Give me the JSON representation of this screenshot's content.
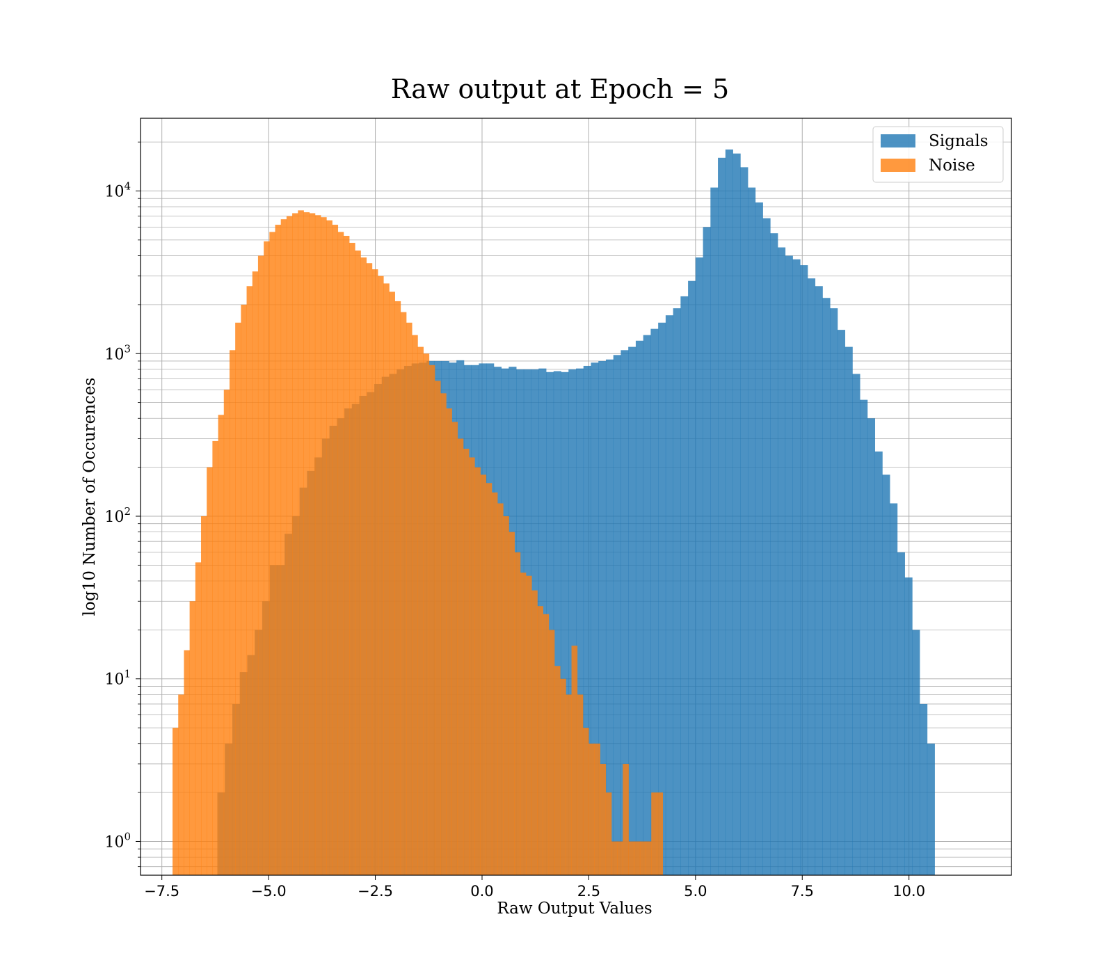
{
  "chart_data": {
    "type": "bar",
    "title": "Raw output at Epoch = 5",
    "xlabel": "Raw Output Values",
    "ylabel": "log10 Number of Occurences",
    "xlim": [
      -8.0,
      12.4
    ],
    "ylim": [
      0.62,
      28000
    ],
    "yscale": "log",
    "grid": true,
    "legend_position": "top-right",
    "x_ticks": [
      -7.5,
      -5.0,
      -2.5,
      0.0,
      2.5,
      5.0,
      7.5,
      10.0
    ],
    "x_tick_labels": [
      "−7.5",
      "−5.0",
      "−2.5",
      "0.0",
      "2.5",
      "5.0",
      "7.5",
      "10.0"
    ],
    "y_ticks": [
      {
        "value": 1,
        "base": "10",
        "exp": "0"
      },
      {
        "value": 10,
        "base": "10",
        "exp": "1"
      },
      {
        "value": 100,
        "base": "10",
        "exp": "2"
      },
      {
        "value": 1000,
        "base": "10",
        "exp": "3"
      },
      {
        "value": 10000,
        "base": "10",
        "exp": "4"
      }
    ],
    "series": [
      {
        "name": "Signals",
        "color": "#1f77b4",
        "opacity": 0.8,
        "bin_start": -6.2,
        "bin_width": 0.175,
        "values": [
          2,
          4,
          7,
          11,
          14,
          20,
          30,
          50,
          50,
          78,
          100,
          150,
          190,
          230,
          300,
          360,
          400,
          460,
          490,
          550,
          580,
          650,
          720,
          750,
          800,
          840,
          870,
          880,
          900,
          900,
          900,
          880,
          910,
          850,
          850,
          870,
          870,
          830,
          810,
          830,
          800,
          800,
          800,
          810,
          770,
          780,
          770,
          800,
          810,
          840,
          880,
          900,
          920,
          980,
          1050,
          1100,
          1200,
          1300,
          1420,
          1550,
          1720,
          1900,
          2250,
          2800,
          3900,
          6000,
          10500,
          16000,
          18000,
          17000,
          14000,
          10500,
          8500,
          6800,
          5500,
          4500,
          4000,
          3800,
          3500,
          2900,
          2600,
          2200,
          1900,
          1400,
          1100,
          750,
          520,
          400,
          250,
          180,
          120,
          60,
          42,
          20,
          7,
          4
        ]
      },
      {
        "name": "Noise",
        "color": "#ff7f0e",
        "opacity": 0.8,
        "bin_start": -7.25,
        "bin_width": 0.1335,
        "values": [
          5,
          8,
          15,
          30,
          52,
          100,
          200,
          290,
          420,
          600,
          1050,
          1550,
          2000,
          2600,
          3200,
          4000,
          4900,
          5600,
          6200,
          6700,
          7000,
          7300,
          7600,
          7400,
          7300,
          7100,
          6900,
          6600,
          6200,
          5600,
          5300,
          4800,
          4300,
          3900,
          3600,
          3300,
          3000,
          2700,
          2400,
          2100,
          1800,
          1550,
          1300,
          1100,
          1000,
          850,
          680,
          570,
          460,
          380,
          300,
          260,
          230,
          200,
          180,
          160,
          140,
          120,
          100,
          80,
          60,
          45,
          43,
          35,
          28,
          25,
          20,
          12,
          10,
          8,
          16,
          8,
          5,
          4,
          4,
          3,
          2,
          1,
          1,
          3,
          1,
          1,
          1,
          1,
          2,
          2
        ]
      }
    ]
  }
}
